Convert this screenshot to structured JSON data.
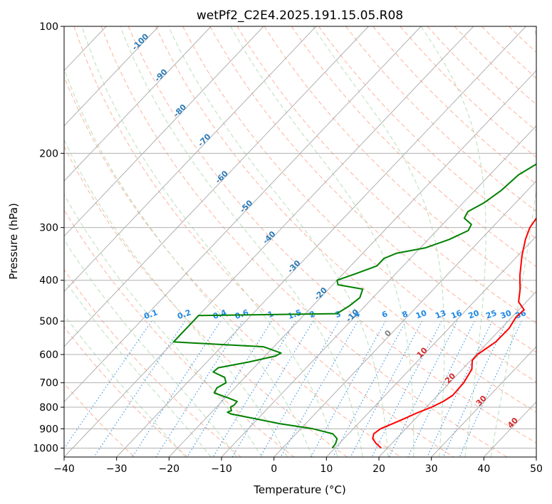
{
  "chart_data": {
    "type": "line",
    "title": "wetPf2_C2E4.2025.191.15.05.R08",
    "xlabel": "Temperature (°C)",
    "ylabel": "Pressure (hPa)",
    "xlim": [
      -40,
      50
    ],
    "ylim": [
      1050,
      100
    ],
    "y_scale": "log",
    "grid": true,
    "x_ticks": [
      -40,
      -30,
      -20,
      -10,
      0,
      10,
      20,
      30,
      40,
      50
    ],
    "y_ticks": [
      100,
      200,
      300,
      400,
      500,
      600,
      700,
      800,
      900,
      1000
    ],
    "series": [
      {
        "role": "temperature",
        "color": "#ff0000",
        "points": [
          [
            18.8,
            1000
          ],
          [
            17.0,
            975
          ],
          [
            15.5,
            950
          ],
          [
            14.8,
            925
          ],
          [
            15.2,
            900
          ],
          [
            16.6,
            875
          ],
          [
            18.0,
            850
          ],
          [
            19.3,
            825
          ],
          [
            21.0,
            800
          ],
          [
            22.2,
            775
          ],
          [
            22.9,
            750
          ],
          [
            22.7,
            700
          ],
          [
            21.8,
            650
          ],
          [
            20.3,
            620
          ],
          [
            20.2,
            600
          ],
          [
            21.4,
            560
          ],
          [
            21.5,
            520
          ],
          [
            20.8,
            490
          ],
          [
            21.0,
            470
          ],
          [
            18.5,
            450
          ],
          [
            16.5,
            420
          ],
          [
            14.0,
            390
          ],
          [
            10.8,
            350
          ],
          [
            8.5,
            320
          ],
          [
            7.2,
            300
          ],
          [
            6.6,
            280
          ],
          [
            6.8,
            265
          ],
          [
            6.0,
            250
          ],
          [
            4.6,
            235
          ],
          [
            2.6,
            210
          ],
          [
            0.8,
            190
          ],
          [
            -0.6,
            175
          ],
          [
            -1.5,
            160
          ],
          [
            -1.8,
            150
          ],
          [
            -1.6,
            140
          ],
          [
            -0.9,
            132
          ],
          [
            0.8,
            125
          ],
          [
            3.5,
            118
          ],
          [
            5.8,
            110
          ],
          [
            7.0,
            105
          ],
          [
            8.0,
            100
          ]
        ]
      },
      {
        "role": "dewpoint",
        "color": "#008000",
        "points": [
          [
            9.5,
            1000
          ],
          [
            9.3,
            975
          ],
          [
            8.7,
            950
          ],
          [
            7.0,
            925
          ],
          [
            2.3,
            900
          ],
          [
            -5.0,
            875
          ],
          [
            -11.0,
            850
          ],
          [
            -16.0,
            830
          ],
          [
            -17.0,
            822
          ],
          [
            -16.5,
            815
          ],
          [
            -17.3,
            800
          ],
          [
            -17.0,
            790
          ],
          [
            -17.1,
            775
          ],
          [
            -19.5,
            760
          ],
          [
            -23.0,
            740
          ],
          [
            -23.4,
            720
          ],
          [
            -22.6,
            700
          ],
          [
            -23.8,
            680
          ],
          [
            -27.0,
            660
          ],
          [
            -26.8,
            645
          ],
          [
            -22.0,
            625
          ],
          [
            -18.0,
            605
          ],
          [
            -17.5,
            595
          ],
          [
            -22.0,
            575
          ],
          [
            -40.0,
            560
          ],
          [
            -40.0,
            485
          ],
          [
            -14.0,
            480
          ],
          [
            -13.0,
            460
          ],
          [
            -12.5,
            440
          ],
          [
            -13.5,
            420
          ],
          [
            -19.0,
            410
          ],
          [
            -20.0,
            400
          ],
          [
            -17.5,
            385
          ],
          [
            -15.0,
            370
          ],
          [
            -15.0,
            355
          ],
          [
            -13.5,
            345
          ],
          [
            -9.0,
            335
          ],
          [
            -6.0,
            320
          ],
          [
            -4.0,
            305
          ],
          [
            -4.5,
            295
          ],
          [
            -7.0,
            285
          ],
          [
            -7.5,
            275
          ],
          [
            -6.0,
            262
          ],
          [
            -5.0,
            245
          ],
          [
            -4.5,
            225
          ],
          [
            -2.8,
            210
          ],
          [
            -0.5,
            195
          ],
          [
            -0.8,
            180
          ],
          [
            -2.5,
            170
          ],
          [
            -3.0,
            160
          ],
          [
            -2.5,
            150
          ],
          [
            -2.4,
            140
          ],
          [
            -1.6,
            130
          ],
          [
            -0.3,
            120
          ],
          [
            1.0,
            108
          ],
          [
            2.0,
            100
          ]
        ]
      }
    ],
    "background": {
      "isotherm_color": "#b0b0b0",
      "isobar_color": "#b0b0b0",
      "dry_adiabat_color": "#ffb29b",
      "moist_adiabat_color": "#b9deb9",
      "mixing_ratio_color": "#1e88e5"
    },
    "annotations": {
      "left_series_labels": [
        "-100",
        "-90",
        "-80",
        "-70",
        "-60",
        "-50",
        "-40",
        "-30",
        "-20",
        "-10"
      ],
      "mixing_ratio_labels": [
        "0.1",
        "0.2",
        "0.4",
        "0.6",
        "1",
        "1.5",
        "2",
        "3",
        "4",
        "6",
        "8",
        "10",
        "13",
        "16",
        "20",
        "25",
        "30",
        "36"
      ],
      "right_series_labels": [
        "0",
        "10",
        "20",
        "30",
        "40"
      ]
    }
  }
}
